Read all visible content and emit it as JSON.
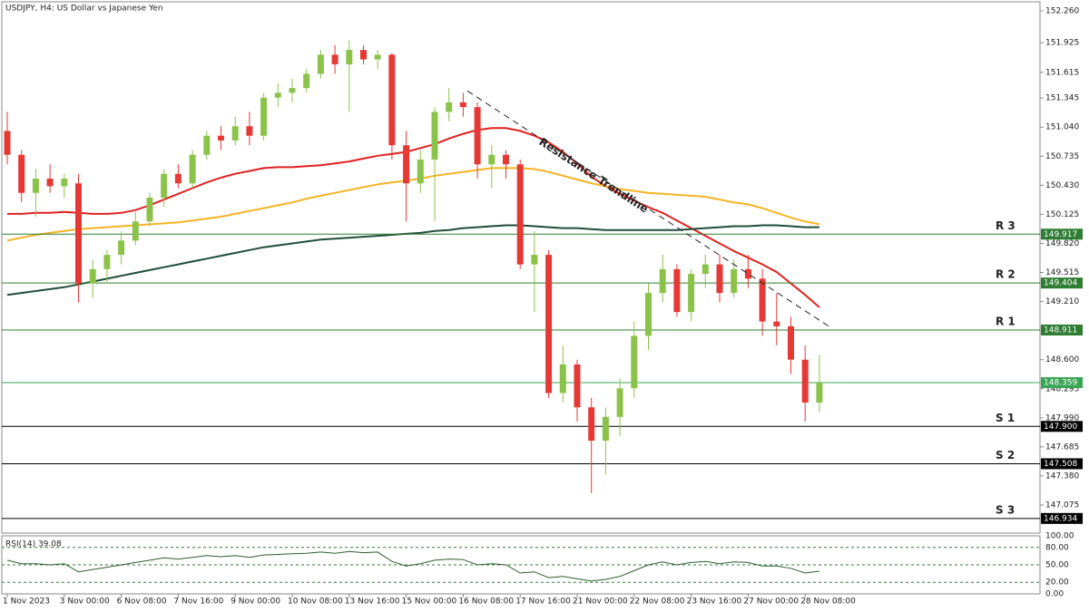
{
  "chart_data": {
    "type": "candlestick",
    "title": "USDJPY, H4:  US Dollar vs Japanese Yen",
    "categories": [
      "1 Nov 2023",
      null,
      null,
      null,
      "3 Nov 00:00",
      null,
      null,
      null,
      "6 Nov 08:00",
      null,
      null,
      null,
      "7 Nov 16:00",
      null,
      null,
      null,
      "9 Nov 00:00",
      null,
      null,
      null,
      "10 Nov 08:00",
      null,
      null,
      null,
      "13 Nov 16:00",
      null,
      null,
      null,
      "15 Nov 00:00",
      null,
      null,
      null,
      "16 Nov 08:00",
      null,
      null,
      null,
      "17 Nov 16:00",
      null,
      null,
      null,
      "21 Nov 00:00",
      null,
      null,
      null,
      "22 Nov 08:00",
      null,
      null,
      null,
      "23 Nov 16:00",
      null,
      null,
      null,
      "27 Nov 00:00",
      null,
      null,
      null,
      "28 Nov 08:00",
      null
    ],
    "open": [
      151.0,
      150.75,
      150.35,
      150.5,
      150.42,
      150.45,
      149.4,
      149.55,
      149.7,
      149.85,
      150.05,
      150.3,
      150.55,
      150.45,
      150.75,
      150.95,
      150.9,
      151.05,
      150.95,
      151.35,
      151.4,
      151.45,
      151.6,
      151.8,
      151.7,
      151.85,
      151.75,
      151.8,
      150.85,
      150.45,
      150.7,
      151.2,
      151.3,
      151.25,
      150.65,
      150.75,
      150.65,
      149.6,
      149.7,
      148.25,
      148.55,
      148.1,
      147.75,
      148.0,
      148.3,
      148.85,
      149.3,
      149.55,
      149.1,
      149.5,
      149.6,
      149.3,
      149.55,
      149.45,
      149.0,
      148.95,
      148.6,
      148.15
    ],
    "high": [
      151.2,
      150.8,
      150.6,
      150.65,
      150.55,
      150.55,
      149.65,
      149.75,
      149.95,
      150.15,
      150.35,
      150.6,
      150.65,
      150.8,
      151.0,
      151.05,
      151.15,
      151.2,
      151.4,
      151.5,
      151.55,
      151.65,
      151.85,
      151.9,
      151.95,
      151.9,
      151.85,
      151.82,
      151.0,
      150.8,
      151.25,
      151.45,
      151.4,
      151.3,
      150.85,
      150.8,
      150.7,
      149.95,
      149.75,
      148.75,
      148.6,
      148.2,
      148.1,
      148.4,
      149.0,
      149.4,
      149.7,
      149.6,
      149.55,
      149.7,
      149.7,
      149.65,
      149.7,
      149.55,
      149.3,
      149.05,
      148.75,
      148.65
    ],
    "low": [
      150.65,
      150.25,
      150.1,
      150.35,
      150.3,
      149.2,
      149.25,
      149.4,
      149.6,
      149.8,
      150.0,
      150.2,
      150.4,
      150.4,
      150.7,
      150.8,
      150.85,
      150.85,
      150.9,
      151.25,
      151.3,
      151.4,
      151.55,
      151.6,
      151.2,
      151.7,
      151.65,
      150.7,
      150.05,
      150.35,
      150.05,
      151.1,
      151.15,
      150.5,
      150.4,
      150.5,
      149.55,
      149.1,
      148.2,
      148.15,
      147.95,
      147.2,
      147.4,
      147.8,
      148.2,
      148.7,
      149.2,
      149.05,
      149.0,
      149.35,
      149.2,
      149.25,
      149.35,
      148.85,
      148.75,
      148.45,
      147.95,
      148.05
    ],
    "close": [
      150.75,
      150.35,
      150.5,
      150.42,
      150.5,
      149.4,
      149.55,
      149.7,
      149.85,
      150.05,
      150.3,
      150.55,
      150.45,
      150.75,
      150.95,
      150.9,
      151.05,
      150.95,
      151.35,
      151.4,
      151.45,
      151.6,
      151.8,
      151.7,
      151.85,
      151.75,
      151.8,
      150.85,
      150.45,
      150.7,
      151.2,
      151.3,
      151.25,
      150.65,
      150.75,
      150.65,
      149.6,
      149.7,
      148.25,
      148.55,
      148.1,
      147.75,
      148.0,
      148.3,
      148.85,
      149.3,
      149.55,
      149.1,
      149.5,
      149.6,
      149.3,
      149.55,
      149.45,
      149.0,
      148.95,
      148.6,
      148.15,
      148.359
    ],
    "up_color": "#8bc34a",
    "down_color": "#e53935",
    "ylim": [
      146.78,
      152.355
    ],
    "yticks": [
      {
        "value": 152.26,
        "label": "152.260"
      },
      151.925,
      151.615,
      151.345,
      {
        "value": 151.04,
        "label": "151.040"
      },
      150.735,
      {
        "value": 150.43,
        "label": "150.430"
      },
      150.125,
      {
        "value": 149.82,
        "label": "149.820"
      },
      149.515,
      {
        "value": 149.21,
        "label": "149.210"
      },
      {
        "value": 148.6,
        "label": "148.600"
      },
      148.295,
      {
        "value": 147.99,
        "label": "147.990"
      },
      147.685,
      {
        "value": 147.38,
        "label": "147.380"
      },
      147.075
    ],
    "moving_averages": [
      {
        "color": "#e02020",
        "values": [
          150.13,
          150.13,
          150.14,
          150.14,
          150.15,
          150.14,
          150.13,
          150.13,
          150.14,
          150.17,
          150.22,
          150.28,
          150.34,
          150.4,
          150.46,
          150.51,
          150.55,
          150.58,
          150.61,
          150.62,
          150.62,
          150.63,
          150.64,
          150.66,
          150.68,
          150.71,
          150.74,
          150.76,
          150.78,
          150.82,
          150.86,
          150.92,
          150.97,
          151.01,
          151.03,
          151.03,
          151.0,
          150.95,
          150.88,
          150.78,
          150.66,
          150.52,
          150.42,
          150.34,
          150.27,
          150.2,
          150.14,
          150.06,
          149.98,
          149.9,
          149.82,
          149.74,
          149.67,
          149.6,
          149.52,
          149.4,
          149.28,
          149.15
        ]
      },
      {
        "color": "#f5b325",
        "values": [
          149.85,
          149.88,
          149.91,
          149.93,
          149.95,
          149.97,
          149.98,
          149.99,
          150.0,
          150.01,
          150.02,
          150.03,
          150.04,
          150.06,
          150.08,
          150.1,
          150.13,
          150.16,
          150.19,
          150.22,
          150.25,
          150.29,
          150.32,
          150.35,
          150.38,
          150.41,
          150.44,
          150.46,
          150.48,
          150.5,
          150.53,
          150.55,
          150.57,
          150.59,
          150.61,
          150.61,
          150.61,
          150.6,
          150.57,
          150.53,
          150.49,
          150.45,
          150.42,
          150.39,
          150.37,
          150.35,
          150.34,
          150.33,
          150.32,
          150.31,
          150.28,
          150.25,
          150.23,
          150.19,
          150.14,
          150.09,
          150.05,
          150.02
        ]
      },
      {
        "color": "#1f4d3a",
        "values": [
          149.28,
          149.3,
          149.32,
          149.34,
          149.36,
          149.39,
          149.42,
          149.45,
          149.48,
          149.51,
          149.54,
          149.57,
          149.6,
          149.63,
          149.66,
          149.69,
          149.72,
          149.75,
          149.78,
          149.8,
          149.82,
          149.84,
          149.86,
          149.87,
          149.88,
          149.89,
          149.9,
          149.91,
          149.92,
          149.93,
          149.95,
          149.96,
          149.98,
          149.99,
          150.0,
          150.01,
          150.01,
          150.0,
          149.99,
          149.98,
          149.98,
          149.97,
          149.96,
          149.96,
          149.96,
          149.96,
          149.96,
          149.96,
          149.97,
          149.98,
          149.99,
          150.0,
          150.0,
          150.01,
          150.01,
          150.0,
          149.99,
          149.99
        ]
      }
    ],
    "levels": [
      {
        "name": "R 3",
        "value": 149.917,
        "label": "149.917",
        "color": "#2e7d32"
      },
      {
        "name": "R 2",
        "value": 149.404,
        "label": "149.404",
        "color": "#2e7d32"
      },
      {
        "name": "R 1",
        "value": 148.911,
        "label": "148.911",
        "color": "#2e7d32"
      },
      {
        "name": "S 1",
        "value": 147.9,
        "label": "147.900",
        "color": "#000000"
      },
      {
        "name": "S 2",
        "value": 147.508,
        "label": "147.508",
        "color": "#000000"
      },
      {
        "name": "S 3",
        "value": 146.934,
        "label": "146.934",
        "color": "#000000"
      }
    ],
    "current_price": {
      "value": 148.359,
      "label": "148.359",
      "color": "#3aa655"
    },
    "trendline": {
      "label": "Resistance Trendline",
      "values": [
        151.42,
        148.94
      ]
    },
    "rsi": {
      "title": "RSI(14) 39.08",
      "color": "#2e5e2e",
      "ylim": [
        0,
        100
      ],
      "yticks": [
        {
          "value": 100,
          "label": "100.00"
        },
        {
          "value": 80,
          "label": "80.00"
        },
        {
          "value": 50,
          "label": "50.00"
        },
        {
          "value": 20,
          "label": "20.00"
        },
        {
          "value": 0,
          "label": "0.00"
        }
      ],
      "values": [
        58,
        52,
        52,
        50,
        52,
        38,
        42,
        46,
        50,
        54,
        58,
        62,
        60,
        63,
        66,
        64,
        66,
        63,
        67,
        68,
        69,
        70,
        72,
        70,
        73,
        71,
        72,
        56,
        48,
        52,
        58,
        60,
        59,
        50,
        52,
        50,
        36,
        38,
        28,
        30,
        26,
        22,
        25,
        30,
        40,
        50,
        55,
        50,
        54,
        56,
        52,
        55,
        54,
        48,
        48,
        44,
        36,
        39.08
      ]
    }
  }
}
